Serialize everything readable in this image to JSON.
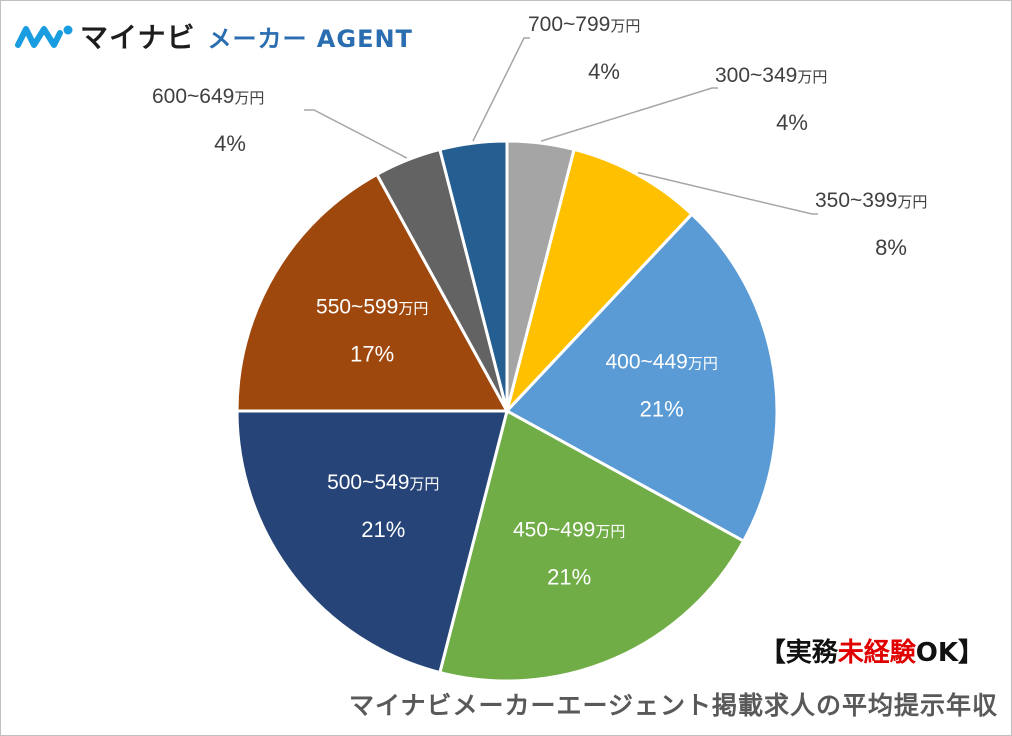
{
  "brand": {
    "name": "マイナビ",
    "sub": "メーカー AGENT",
    "colors": {
      "mark": "#1a9de0",
      "text": "#1d1d1d",
      "sub": "#2a6db0"
    }
  },
  "chart_data": {
    "type": "pie",
    "unit_label": "万円",
    "slices": [
      {
        "range": "300~349",
        "label": "4%",
        "value": 4,
        "color": "#a5a5a5"
      },
      {
        "range": "350~399",
        "label": "8%",
        "value": 8,
        "color": "#ffc000"
      },
      {
        "range": "400~449",
        "label": "21%",
        "value": 21,
        "color": "#5b9bd5"
      },
      {
        "range": "450~499",
        "label": "21%",
        "value": 21,
        "color": "#70ad47"
      },
      {
        "range": "500~549",
        "label": "21%",
        "value": 21,
        "color": "#264478"
      },
      {
        "range": "550~599",
        "label": "17%",
        "value": 17,
        "color": "#9e480e"
      },
      {
        "range": "600~649",
        "label": "4%",
        "value": 4,
        "color": "#636363"
      },
      {
        "range": "700~799",
        "label": "4%",
        "value": 4,
        "color": "#255e91"
      }
    ]
  },
  "note": {
    "open": "【実務",
    "highlight": "未経験",
    "close": "OK】"
  },
  "caption": "マイナビメーカーエージェント掲載求人の平均提示年収"
}
